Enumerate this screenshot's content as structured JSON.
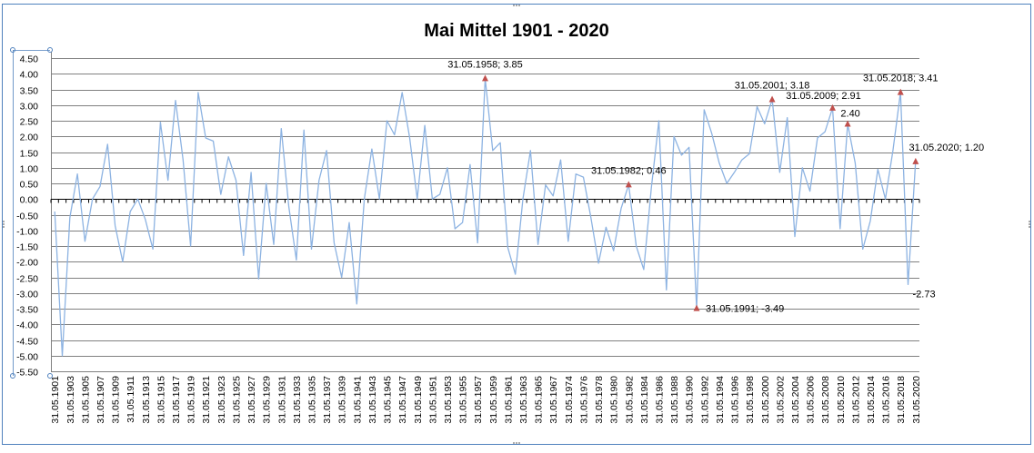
{
  "chart_data": {
    "type": "line",
    "title": "Mai Mittel 1901 - 2020",
    "xlabel": "",
    "ylabel": "",
    "ylim": [
      -5.5,
      4.5
    ],
    "y_tick_step": 0.5,
    "grid": true,
    "legend": "none",
    "colors": {
      "line": "#8db3e2",
      "marker": "#c0504d",
      "grid": "#808080",
      "frame_border": "#4f81bd"
    },
    "x": [
      "31.05.1901",
      "31.05.1902",
      "31.05.1903",
      "31.05.1904",
      "31.05.1905",
      "31.05.1906",
      "31.05.1907",
      "31.05.1908",
      "31.05.1909",
      "31.05.1910",
      "31.05.1911",
      "31.05.1912",
      "31.05.1913",
      "31.05.1914",
      "31.05.1915",
      "31.05.1916",
      "31.05.1917",
      "31.05.1918",
      "31.05.1919",
      "31.05.1920",
      "31.05.1921",
      "31.05.1922",
      "31.05.1923",
      "31.05.1924",
      "31.05.1925",
      "31.05.1926",
      "31.05.1927",
      "31.05.1928",
      "31.05.1929",
      "31.05.1930",
      "31.05.1931",
      "31.05.1932",
      "31.05.1933",
      "31.05.1934",
      "31.05.1935",
      "31.05.1936",
      "31.05.1937",
      "31.05.1938",
      "31.05.1939",
      "31.05.1940",
      "31.05.1941",
      "31.05.1942",
      "31.05.1943",
      "31.05.1944",
      "31.05.1945",
      "31.05.1946",
      "31.05.1947",
      "31.05.1948",
      "31.05.1949",
      "31.05.1950",
      "31.05.1951",
      "31.05.1952",
      "31.05.1953",
      "31.05.1954",
      "31.05.1955",
      "31.05.1956",
      "31.05.1957",
      "31.05.1958",
      "31.05.1959",
      "31.05.1960",
      "31.05.1961",
      "31.05.1962",
      "31.05.1963",
      "31.05.1964",
      "31.05.1965",
      "31.05.1966",
      "31.05.1967",
      "31.05.1968",
      "31.05.1974",
      "31.05.1975",
      "31.05.1976",
      "31.05.1977",
      "31.05.1978",
      "31.05.1979",
      "31.05.1980",
      "31.05.1981",
      "31.05.1982",
      "31.05.1983",
      "31.05.1984",
      "31.05.1985",
      "31.05.1986",
      "31.05.1987",
      "31.05.1988",
      "31.05.1989",
      "31.05.1990",
      "31.05.1991",
      "31.05.1992",
      "31.05.1993",
      "31.05.1994",
      "31.05.1995",
      "31.05.1996",
      "31.05.1997",
      "31.05.1998",
      "31.05.1999",
      "31.05.2000",
      "31.05.2001",
      "31.05.2002",
      "31.05.2003",
      "31.05.2004",
      "31.05.2005",
      "31.05.2006",
      "31.05.2007",
      "31.05.2008",
      "31.05.2009",
      "31.05.2010",
      "31.05.2011",
      "31.05.2012",
      "31.05.2013",
      "31.05.2014",
      "31.05.2015",
      "31.05.2016",
      "31.05.2017",
      "31.05.2018",
      "31.05.2019",
      "31.05.2020"
    ],
    "tick_labels": [
      "31.05.1901",
      "31.05.1903",
      "31.05.1905",
      "31.05.1907",
      "31.05.1909",
      "31.05.1911",
      "31.05.1913",
      "31.05.1915",
      "31.05.1917",
      "31.05.1919",
      "31.05.1921",
      "31.05.1923",
      "31.05.1925",
      "31.05.1927",
      "31.05.1929",
      "31.05.1931",
      "31.05.1933",
      "31.05.1935",
      "31.05.1937",
      "31.05.1939",
      "31.05.1941",
      "31.05.1943",
      "31.05.1945",
      "31.05.1947",
      "31.05.1949",
      "31.05.1951",
      "31.05.1953",
      "31.05.1955",
      "31.05.1957",
      "31.05.1959",
      "31.05.1961",
      "31.05.1963",
      "31.05.1965",
      "31.05.1967",
      "31.05.1974",
      "31.05.1976",
      "31.05.1978",
      "31.05.1980",
      "31.05.1982",
      "31.05.1984",
      "31.05.1986",
      "31.05.1988",
      "31.05.1990",
      "31.05.1992",
      "31.05.1994",
      "31.05.1996",
      "31.05.1998",
      "31.05.2000",
      "31.05.2002",
      "31.05.2004",
      "31.05.2006",
      "31.05.2008",
      "31.05.2010",
      "31.05.2012",
      "31.05.2014",
      "31.05.2016",
      "31.05.2018",
      "31.05.2020"
    ],
    "series": [
      {
        "values": [
          -0.4,
          -5.0,
          -0.6,
          0.8,
          -1.35,
          0.0,
          0.4,
          1.75,
          -0.85,
          -2.0,
          -0.4,
          0.0,
          -0.65,
          -1.6,
          2.45,
          0.6,
          3.15,
          1.25,
          -1.5,
          3.4,
          1.95,
          1.85,
          0.15,
          1.35,
          0.6,
          -1.8,
          0.85,
          -2.55,
          0.5,
          -1.45,
          2.25,
          -0.25,
          -1.95,
          2.2,
          -1.6,
          0.6,
          1.55,
          -1.4,
          -2.5,
          -0.75,
          -3.35,
          0.0,
          1.6,
          0.0,
          2.5,
          2.05,
          3.4,
          1.95,
          0.0,
          2.35,
          0.0,
          0.15,
          1.0,
          -0.95,
          -0.75,
          1.1,
          -1.4,
          3.85,
          1.55,
          1.8,
          -1.55,
          -2.4,
          0.0,
          1.55,
          -1.45,
          0.45,
          0.1,
          1.25,
          -1.35,
          0.8,
          0.7,
          -0.6,
          -2.05,
          -0.9,
          -1.65,
          -0.3,
          0.46,
          -1.5,
          -2.25,
          0.35,
          2.5,
          -2.9,
          2.0,
          1.4,
          1.65,
          -3.49,
          2.85,
          2.1,
          1.15,
          0.5,
          0.85,
          1.25,
          1.45,
          2.95,
          2.4,
          3.18,
          0.85,
          2.6,
          -1.2,
          1.0,
          0.25,
          1.95,
          2.15,
          2.91,
          -0.95,
          2.4,
          1.15,
          -1.6,
          -0.7,
          0.95,
          0.0,
          1.55,
          3.41,
          -2.73,
          1.2
        ]
      }
    ],
    "annotations": [
      {
        "index": 57,
        "text": "31.05.1958; 3.85",
        "marker": true
      },
      {
        "index": 76,
        "text": "31.05.1982; 0.46",
        "marker": true
      },
      {
        "index": 85,
        "text": "31.05.1991; -3.49",
        "marker": true
      },
      {
        "index": 95,
        "text": "31.05.2001; 3.18",
        "marker": true
      },
      {
        "index": 103,
        "text": "31.05.2009; 2.91",
        "marker": true
      },
      {
        "index": 105,
        "text": "2.40",
        "marker": true
      },
      {
        "index": 112,
        "text": "31.05.2018; 3.41",
        "marker": true
      },
      {
        "index": 113,
        "text": "-2.73",
        "marker": false
      },
      {
        "index": 114,
        "text": "31.05.2020; 1.20",
        "marker": true
      }
    ]
  }
}
